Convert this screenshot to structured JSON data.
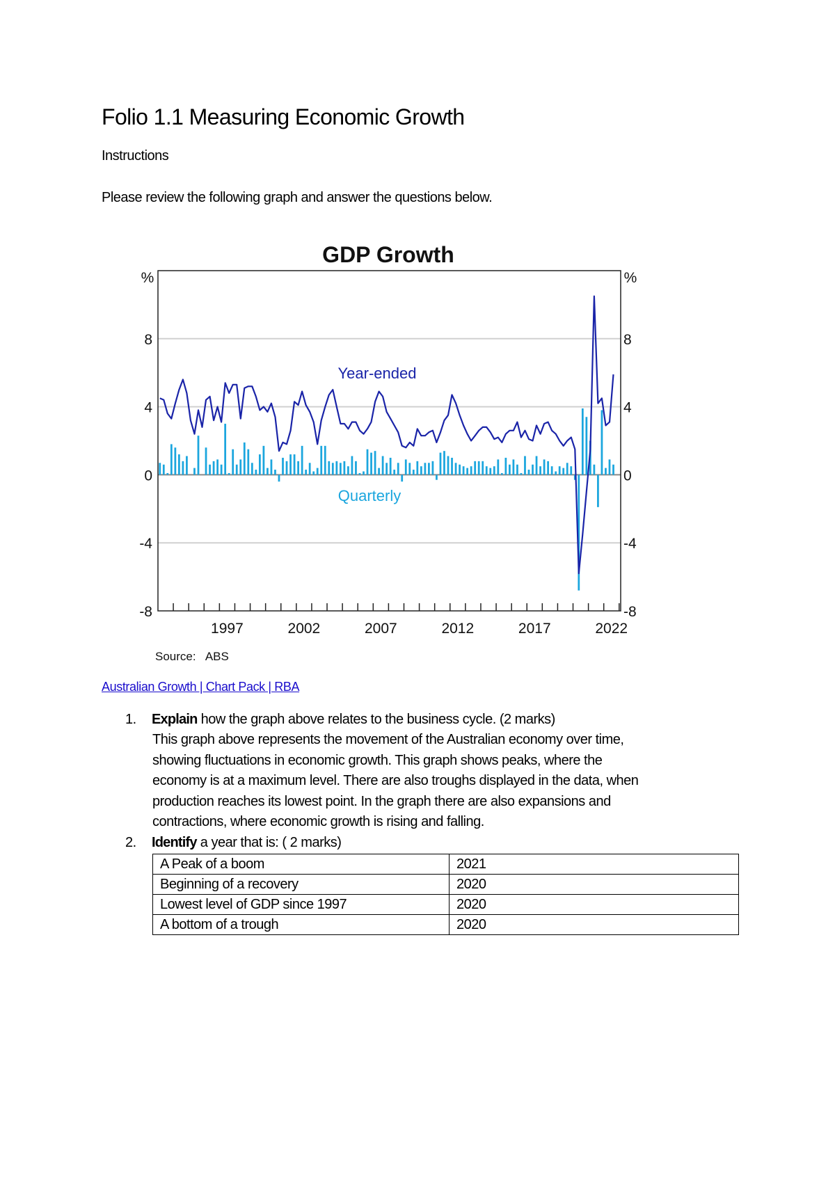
{
  "document": {
    "title": "Folio 1.1 Measuring Economic Growth",
    "instructions_heading": "Instructions",
    "intro": "Please review the following graph and answer the questions below.",
    "link_text": "Australian Growth | Chart Pack | RBA"
  },
  "questions": [
    {
      "number": "1.",
      "keyword": "Explain",
      "prompt": " how the graph above relates to the business cycle. (2 marks)",
      "answer_lines": [
        "This graph above represents the movement of the Australian economy over time,",
        "showing fluctuations in economic growth. This graph shows peaks, where the",
        "economy is at a maximum level. There are also troughs displayed in the data, when",
        "production reaches its lowest point. In the graph there are also expansions and",
        "contractions, where economic growth is rising and falling."
      ]
    },
    {
      "number": "2.",
      "keyword": "Identify",
      "prompt": " a year that is: ( 2 marks)"
    }
  ],
  "table": [
    [
      "A Peak of a boom",
      "2021"
    ],
    [
      "Beginning of a recovery",
      "2020"
    ],
    [
      "Lowest level of GDP since 1997",
      "2020"
    ],
    [
      "A bottom of a trough",
      "2020"
    ]
  ],
  "chart_data": {
    "type": "line+bar",
    "title": "GDP Growth",
    "ylabel_left": "%",
    "ylabel_right": "%",
    "source": "Source:   ABS",
    "ylim": [
      -8,
      12
    ],
    "yticks": [
      -8,
      -4,
      0,
      4,
      8
    ],
    "xlim": [
      1993,
      2023.1
    ],
    "xtick_labels": [
      "1997",
      "2002",
      "2007",
      "2012",
      "2017",
      "2022"
    ],
    "grid": true,
    "frequency": "quarterly",
    "colors": {
      "year_ended": "#1a24a8",
      "quarterly": "#1ba6de",
      "grid": "#d0d0d0"
    },
    "series": [
      {
        "name": "Year-ended",
        "kind": "line",
        "values": [
          4.5,
          4.4,
          3.6,
          3.3,
          4.2,
          5.0,
          5.6,
          4.8,
          3.2,
          2.4,
          3.8,
          2.8,
          4.4,
          4.6,
          3.2,
          4.0,
          3.1,
          5.4,
          4.8,
          5.3,
          5.3,
          3.3,
          5.1,
          5.2,
          5.2,
          4.6,
          3.8,
          4.0,
          3.7,
          4.2,
          3.4,
          1.4,
          1.9,
          1.8,
          2.6,
          4.3,
          4.1,
          4.9,
          4.1,
          3.7,
          3.1,
          1.8,
          3.2,
          4.0,
          4.7,
          5.0,
          4.0,
          3.0,
          3.0,
          2.7,
          3.1,
          3.1,
          2.6,
          2.4,
          2.7,
          3.1,
          4.3,
          4.9,
          4.6,
          3.7,
          3.3,
          2.9,
          2.5,
          1.7,
          1.6,
          1.9,
          1.7,
          2.7,
          2.3,
          2.3,
          2.5,
          2.6,
          1.9,
          2.5,
          3.2,
          3.5,
          4.7,
          4.2,
          3.5,
          2.9,
          2.4,
          2.0,
          2.3,
          2.6,
          2.8,
          2.8,
          2.5,
          2.1,
          2.2,
          1.9,
          2.4,
          2.6,
          2.6,
          3.1,
          2.2,
          2.6,
          2.1,
          2.0,
          2.9,
          2.4,
          3.0,
          3.1,
          2.6,
          2.4,
          2.0,
          1.7,
          2.0,
          2.2,
          1.5,
          -5.8,
          -3.5,
          -1.0,
          1.5,
          10.5,
          4.2,
          4.5,
          2.9,
          3.1,
          5.9
        ]
      },
      {
        "name": "Quarterly",
        "kind": "bar",
        "values": [
          0.7,
          0.6,
          0.1,
          1.8,
          1.6,
          1.2,
          0.8,
          1.1,
          0.0,
          0.4,
          2.3,
          0.0,
          1.6,
          0.6,
          0.8,
          0.9,
          0.6,
          3.0,
          0.1,
          1.5,
          0.6,
          0.9,
          1.9,
          1.5,
          0.7,
          0.3,
          1.2,
          1.7,
          0.4,
          0.9,
          0.3,
          -0.4,
          1.0,
          0.8,
          1.2,
          1.2,
          0.8,
          1.7,
          0.3,
          0.7,
          0.2,
          0.4,
          1.7,
          1.7,
          0.8,
          0.7,
          0.8,
          0.7,
          0.8,
          0.5,
          1.1,
          0.8,
          0.1,
          0.2,
          1.5,
          1.3,
          1.4,
          0.4,
          1.1,
          0.7,
          1.0,
          0.3,
          0.7,
          -0.4,
          0.9,
          0.7,
          0.3,
          0.8,
          0.5,
          0.7,
          0.7,
          0.8,
          -0.3,
          1.3,
          1.4,
          1.1,
          1.0,
          0.7,
          0.6,
          0.5,
          0.4,
          0.5,
          0.8,
          0.8,
          0.8,
          0.5,
          0.4,
          0.5,
          0.9,
          0.1,
          1.0,
          0.6,
          0.9,
          0.6,
          0.1,
          1.1,
          0.3,
          0.6,
          1.1,
          0.5,
          0.9,
          0.8,
          0.5,
          0.2,
          0.5,
          0.4,
          0.7,
          0.5,
          -0.3,
          -6.8,
          3.9,
          3.4,
          2.0,
          0.6,
          -1.9,
          3.8,
          0.4,
          0.9,
          0.6
        ]
      }
    ]
  }
}
